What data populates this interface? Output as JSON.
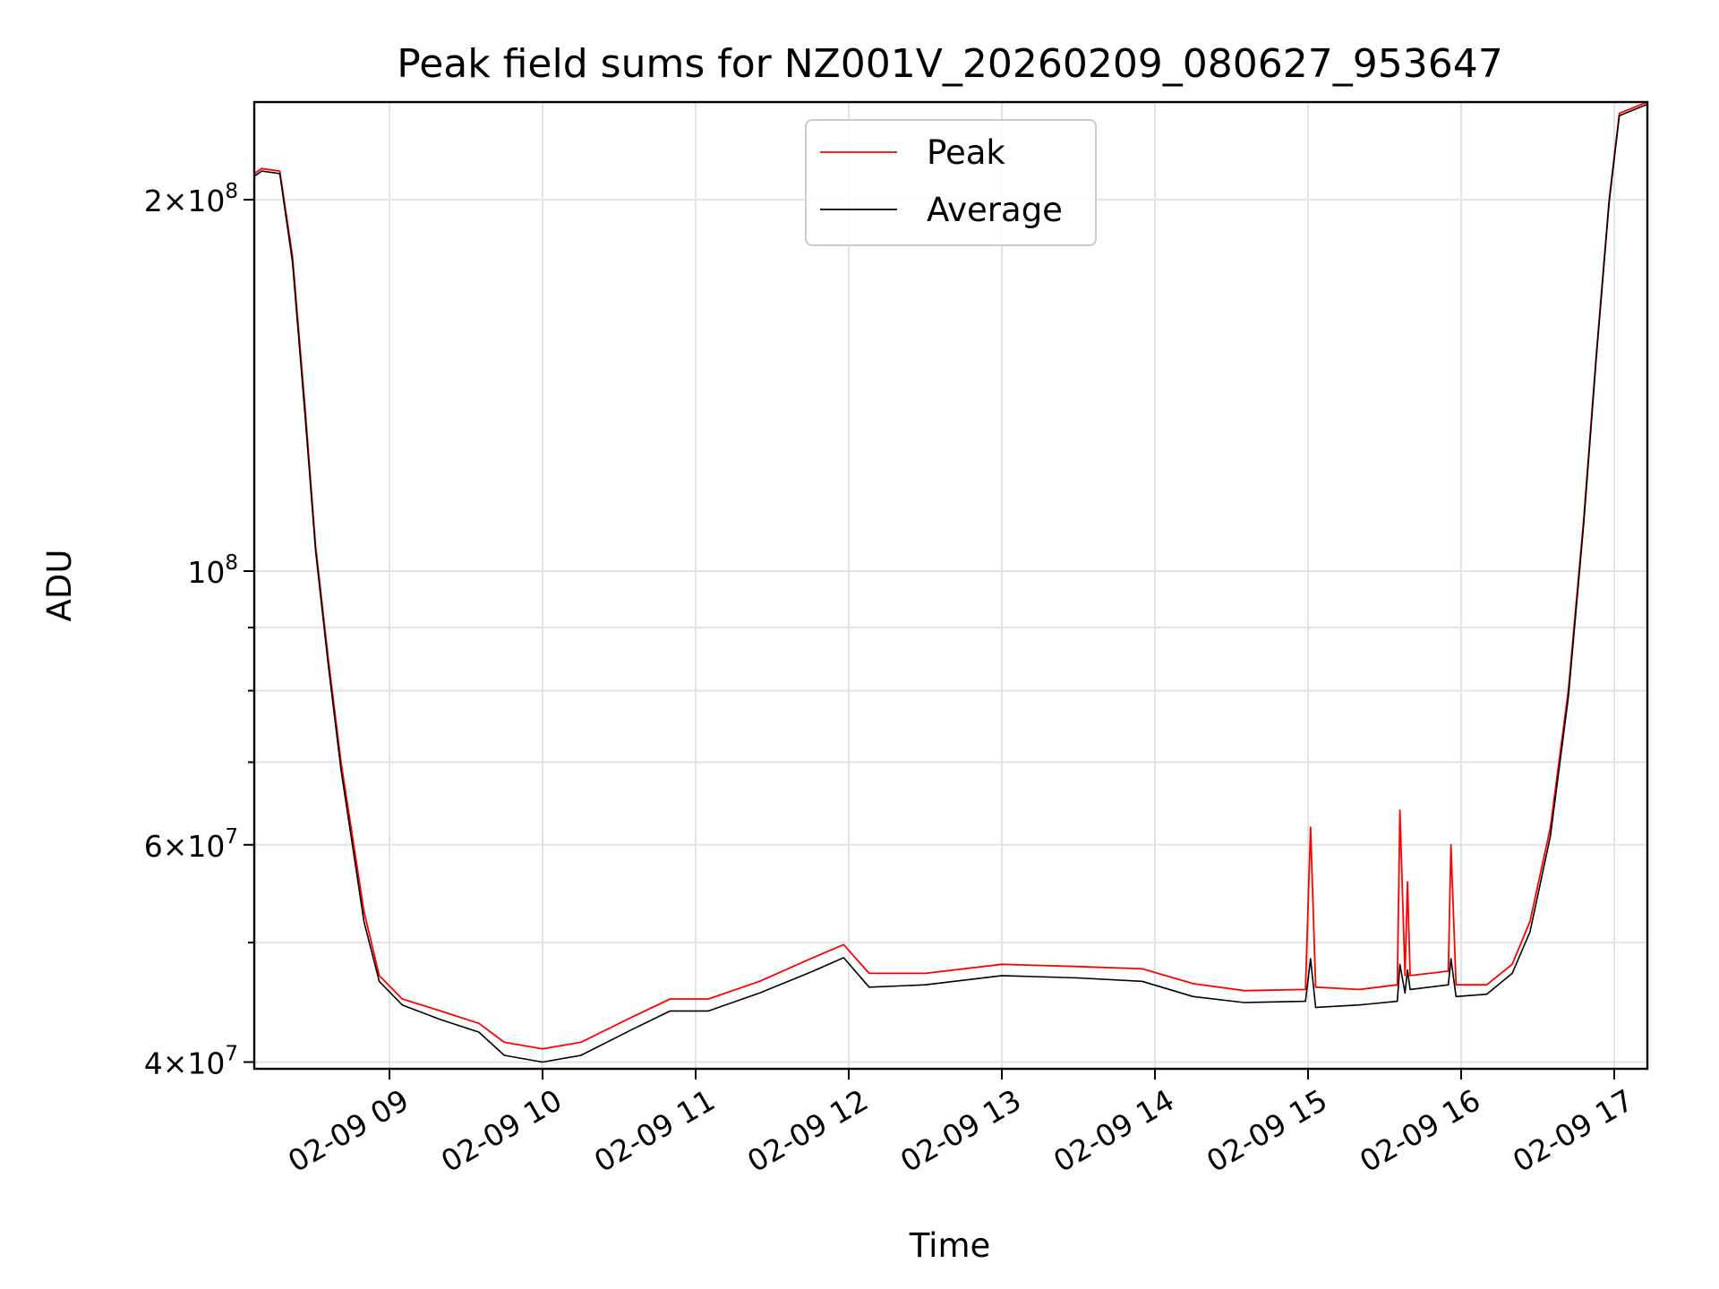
{
  "chart_data": {
    "type": "line",
    "title": "Peak field sums for NZ001V_20260209_080627_953647",
    "xlabel": "Time",
    "ylabel": "ADU",
    "y_scale": "log",
    "x_axis_kind": "datetime",
    "xlim": [
      "2026-02-09 08:07",
      "2026-02-09 17:13"
    ],
    "ylim": [
      39500000,
      240000000
    ],
    "x_ticks": [
      {
        "label": "02-09 09",
        "time": "2026-02-09 09:00"
      },
      {
        "label": "02-09 10",
        "time": "2026-02-09 10:00"
      },
      {
        "label": "02-09 11",
        "time": "2026-02-09 11:00"
      },
      {
        "label": "02-09 12",
        "time": "2026-02-09 12:00"
      },
      {
        "label": "02-09 13",
        "time": "2026-02-09 13:00"
      },
      {
        "label": "02-09 14",
        "time": "2026-02-09 14:00"
      },
      {
        "label": "02-09 15",
        "time": "2026-02-09 15:00"
      },
      {
        "label": "02-09 16",
        "time": "2026-02-09 16:00"
      },
      {
        "label": "02-09 17",
        "time": "2026-02-09 17:00"
      }
    ],
    "y_major_ticks": [
      {
        "value": 40000000,
        "mantissa": "4",
        "exponent": "7"
      },
      {
        "value": 60000000,
        "mantissa": "6",
        "exponent": "7"
      },
      {
        "value": 100000000,
        "mantissa": "",
        "exponent": "8"
      },
      {
        "value": 200000000,
        "mantissa": "2",
        "exponent": "8"
      }
    ],
    "y_minor_ticks": [
      50000000,
      70000000,
      80000000,
      90000000
    ],
    "grid": true,
    "legend": "upper center",
    "series": [
      {
        "name": "Peak",
        "color": "#ff0000",
        "points": [
          [
            "2026-02-09 08:07",
            210000000
          ],
          [
            "2026-02-09 08:10",
            212000000
          ],
          [
            "2026-02-09 08:17",
            211000000
          ],
          [
            "2026-02-09 08:22",
            180000000
          ],
          [
            "2026-02-09 08:27",
            135000000
          ],
          [
            "2026-02-09 08:31",
            105000000
          ],
          [
            "2026-02-09 08:36",
            85000000
          ],
          [
            "2026-02-09 08:41",
            70000000
          ],
          [
            "2026-02-09 08:46",
            60000000
          ],
          [
            "2026-02-09 08:50",
            53000000
          ],
          [
            "2026-02-09 08:56",
            47000000
          ],
          [
            "2026-02-09 09:05",
            45000000
          ],
          [
            "2026-02-09 09:20",
            44000000
          ],
          [
            "2026-02-09 09:35",
            43000000
          ],
          [
            "2026-02-09 09:45",
            41500000
          ],
          [
            "2026-02-09 10:00",
            41000000
          ],
          [
            "2026-02-09 10:15",
            41500000
          ],
          [
            "2026-02-09 10:35",
            43500000
          ],
          [
            "2026-02-09 10:50",
            45000000
          ],
          [
            "2026-02-09 11:05",
            45000000
          ],
          [
            "2026-02-09 11:25",
            46500000
          ],
          [
            "2026-02-09 11:45",
            48500000
          ],
          [
            "2026-02-09 11:58",
            49800000
          ],
          [
            "2026-02-09 12:08",
            47200000
          ],
          [
            "2026-02-09 12:30",
            47200000
          ],
          [
            "2026-02-09 13:00",
            48000000
          ],
          [
            "2026-02-09 13:30",
            47800000
          ],
          [
            "2026-02-09 13:55",
            47600000
          ],
          [
            "2026-02-09 14:15",
            46300000
          ],
          [
            "2026-02-09 14:35",
            45700000
          ],
          [
            "2026-02-09 14:59",
            45800000
          ],
          [
            "2026-02-09 15:01",
            62000000
          ],
          [
            "2026-02-09 15:03",
            46000000
          ],
          [
            "2026-02-09 15:20",
            45800000
          ],
          [
            "2026-02-09 15:35",
            46200000
          ],
          [
            "2026-02-09 15:36",
            64000000
          ],
          [
            "2026-02-09 15:38",
            47000000
          ],
          [
            "2026-02-09 15:39",
            56000000
          ],
          [
            "2026-02-09 15:40",
            47000000
          ],
          [
            "2026-02-09 15:55",
            47400000
          ],
          [
            "2026-02-09 15:56",
            60000000
          ],
          [
            "2026-02-09 15:58",
            46200000
          ],
          [
            "2026-02-09 16:10",
            46200000
          ],
          [
            "2026-02-09 16:20",
            48000000
          ],
          [
            "2026-02-09 16:27",
            52000000
          ],
          [
            "2026-02-09 16:35",
            62000000
          ],
          [
            "2026-02-09 16:42",
            80000000
          ],
          [
            "2026-02-09 16:48",
            110000000
          ],
          [
            "2026-02-09 16:53",
            150000000
          ],
          [
            "2026-02-09 16:58",
            200000000
          ],
          [
            "2026-02-09 17:02",
            235000000
          ],
          [
            "2026-02-09 17:13",
            240000000
          ]
        ]
      },
      {
        "name": "Average",
        "color": "#000000",
        "points": [
          [
            "2026-02-09 08:07",
            209000000
          ],
          [
            "2026-02-09 08:10",
            211000000
          ],
          [
            "2026-02-09 08:17",
            210000000
          ],
          [
            "2026-02-09 08:22",
            178000000
          ],
          [
            "2026-02-09 08:27",
            133000000
          ],
          [
            "2026-02-09 08:31",
            104000000
          ],
          [
            "2026-02-09 08:36",
            84000000
          ],
          [
            "2026-02-09 08:41",
            69000000
          ],
          [
            "2026-02-09 08:46",
            59000000
          ],
          [
            "2026-02-09 08:50",
            52000000
          ],
          [
            "2026-02-09 08:56",
            46500000
          ],
          [
            "2026-02-09 09:05",
            44500000
          ],
          [
            "2026-02-09 09:20",
            43300000
          ],
          [
            "2026-02-09 09:35",
            42300000
          ],
          [
            "2026-02-09 09:45",
            40500000
          ],
          [
            "2026-02-09 10:00",
            40000000
          ],
          [
            "2026-02-09 10:15",
            40500000
          ],
          [
            "2026-02-09 10:35",
            42500000
          ],
          [
            "2026-02-09 10:50",
            44000000
          ],
          [
            "2026-02-09 11:05",
            44000000
          ],
          [
            "2026-02-09 11:25",
            45500000
          ],
          [
            "2026-02-09 11:45",
            47300000
          ],
          [
            "2026-02-09 11:58",
            48600000
          ],
          [
            "2026-02-09 12:08",
            46000000
          ],
          [
            "2026-02-09 12:30",
            46200000
          ],
          [
            "2026-02-09 13:00",
            47000000
          ],
          [
            "2026-02-09 13:30",
            46800000
          ],
          [
            "2026-02-09 13:55",
            46500000
          ],
          [
            "2026-02-09 14:15",
            45200000
          ],
          [
            "2026-02-09 14:35",
            44700000
          ],
          [
            "2026-02-09 14:59",
            44800000
          ],
          [
            "2026-02-09 15:01",
            48500000
          ],
          [
            "2026-02-09 15:03",
            44300000
          ],
          [
            "2026-02-09 15:20",
            44500000
          ],
          [
            "2026-02-09 15:35",
            44800000
          ],
          [
            "2026-02-09 15:36",
            48000000
          ],
          [
            "2026-02-09 15:38",
            45500000
          ],
          [
            "2026-02-09 15:39",
            47500000
          ],
          [
            "2026-02-09 15:40",
            45800000
          ],
          [
            "2026-02-09 15:55",
            46200000
          ],
          [
            "2026-02-09 15:56",
            48500000
          ],
          [
            "2026-02-09 15:58",
            45200000
          ],
          [
            "2026-02-09 16:10",
            45400000
          ],
          [
            "2026-02-09 16:20",
            47200000
          ],
          [
            "2026-02-09 16:27",
            51000000
          ],
          [
            "2026-02-09 16:35",
            61000000
          ],
          [
            "2026-02-09 16:42",
            79000000
          ],
          [
            "2026-02-09 16:48",
            109000000
          ],
          [
            "2026-02-09 16:53",
            149000000
          ],
          [
            "2026-02-09 16:58",
            199000000
          ],
          [
            "2026-02-09 17:02",
            234000000
          ],
          [
            "2026-02-09 17:13",
            239000000
          ]
        ]
      }
    ]
  }
}
